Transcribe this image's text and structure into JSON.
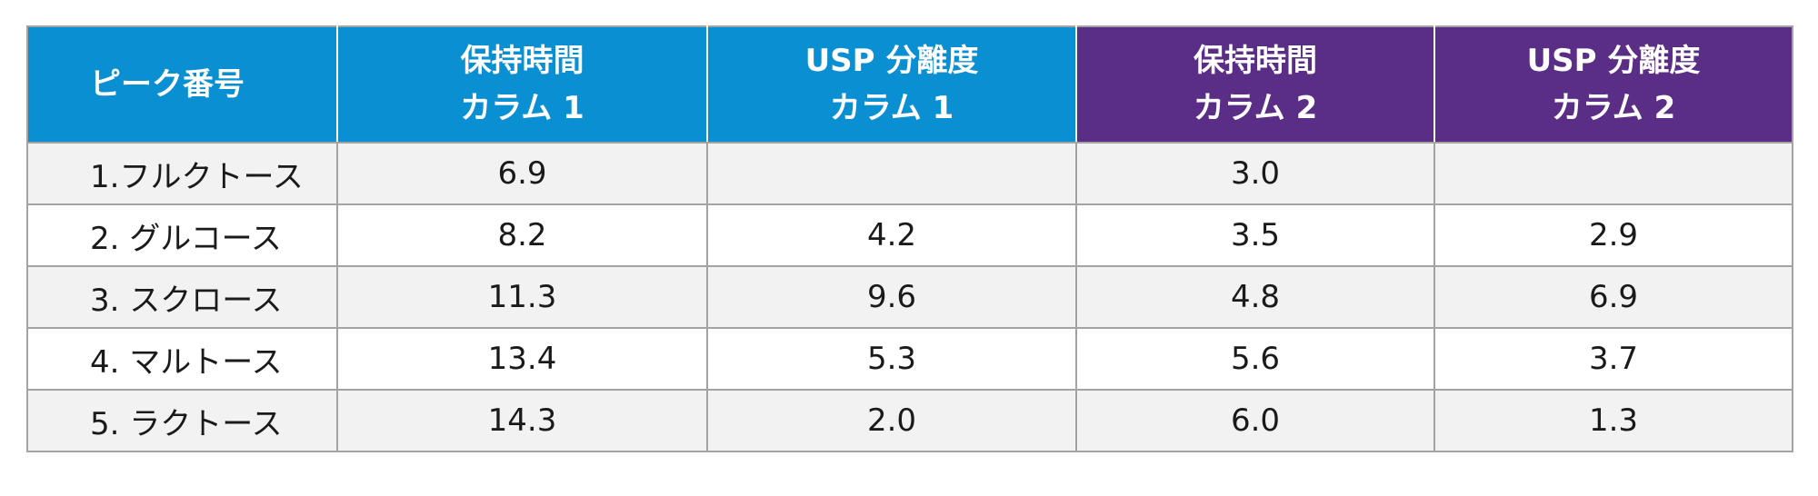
{
  "table": {
    "headers": [
      {
        "lines": [
          "ピーク番号"
        ],
        "color": "#0a8fd3"
      },
      {
        "lines": [
          "保持時間",
          "カラム 1"
        ],
        "color": "#0a8fd3"
      },
      {
        "lines": [
          "USP 分離度",
          "カラム 1"
        ],
        "color": "#0a8fd3"
      },
      {
        "lines": [
          "保持時間",
          "カラム 2"
        ],
        "color": "#5a2d87"
      },
      {
        "lines": [
          "USP 分離度",
          "カラム 2"
        ],
        "color": "#5a2d87"
      }
    ],
    "rows": [
      [
        "1.フルクトース",
        "6.9",
        "",
        "3.0",
        ""
      ],
      [
        "2. グルコース",
        "8.2",
        "4.2",
        "3.5",
        "2.9"
      ],
      [
        "3. スクロース",
        "11.3",
        "9.6",
        "4.8",
        "6.9"
      ],
      [
        "4. マルトース",
        "13.4",
        "5.3",
        "5.6",
        "3.7"
      ],
      [
        "5. ラクトース",
        "14.3",
        "2.0",
        "6.0",
        "1.3"
      ]
    ]
  }
}
